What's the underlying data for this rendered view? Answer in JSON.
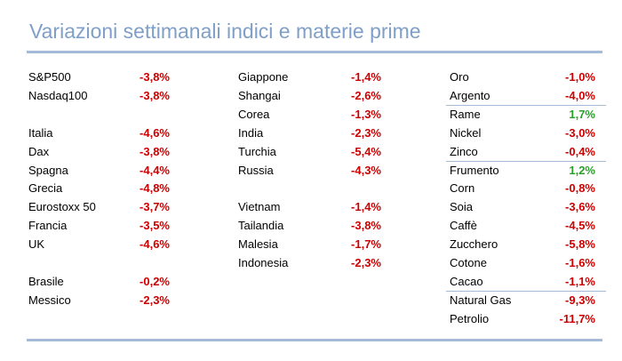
{
  "title": "Variazioni settimanali indici e materie prime",
  "colors": {
    "title": "#7f9fc8",
    "rule": "#a5bad6",
    "negative": "#cc0000",
    "positive": "#2aa02a"
  },
  "col1": [
    {
      "name": "S&P500",
      "value": "-3,8%",
      "sign": "neg"
    },
    {
      "name": "Nasdaq100",
      "value": "-3,8%",
      "sign": "neg"
    },
    {
      "name": "Italia",
      "value": "-4,6%",
      "sign": "neg"
    },
    {
      "name": "Dax",
      "value": "-3,8%",
      "sign": "neg"
    },
    {
      "name": "Spagna",
      "value": "-4,4%",
      "sign": "neg"
    },
    {
      "name": "Grecia",
      "value": "-4,8%",
      "sign": "neg"
    },
    {
      "name": "Eurostoxx 50",
      "value": "-3,7%",
      "sign": "neg"
    },
    {
      "name": "Francia",
      "value": "-3,5%",
      "sign": "neg"
    },
    {
      "name": "UK",
      "value": "-4,6%",
      "sign": "neg"
    },
    {
      "name": "Brasile",
      "value": "-0,2%",
      "sign": "neg"
    },
    {
      "name": "Messico",
      "value": "-2,3%",
      "sign": "neg"
    }
  ],
  "col2": [
    {
      "name": "Giappone",
      "value": "-1,4%",
      "sign": "neg"
    },
    {
      "name": "Shangai",
      "value": "-2,6%",
      "sign": "neg"
    },
    {
      "name": "Corea",
      "value": "-1,3%",
      "sign": "neg"
    },
    {
      "name": "India",
      "value": "-2,3%",
      "sign": "neg"
    },
    {
      "name": "Turchia",
      "value": "-5,4%",
      "sign": "neg"
    },
    {
      "name": "Russia",
      "value": "-4,3%",
      "sign": "neg"
    },
    {
      "name": "Vietnam",
      "value": "-1,4%",
      "sign": "neg"
    },
    {
      "name": "Tailandia",
      "value": "-3,8%",
      "sign": "neg"
    },
    {
      "name": "Malesia",
      "value": "-1,7%",
      "sign": "neg"
    },
    {
      "name": "Indonesia",
      "value": "-2,3%",
      "sign": "neg"
    }
  ],
  "col3": [
    {
      "name": "Oro",
      "value": "-1,0%",
      "sign": "neg"
    },
    {
      "name": "Argento",
      "value": "-4,0%",
      "sign": "neg"
    },
    {
      "name": "Rame",
      "value": "1,7%",
      "sign": "pos"
    },
    {
      "name": "Nickel",
      "value": "-3,0%",
      "sign": "neg"
    },
    {
      "name": "Zinco",
      "value": "-0,4%",
      "sign": "neg"
    },
    {
      "name": "Frumento",
      "value": "1,2%",
      "sign": "pos"
    },
    {
      "name": "Corn",
      "value": "-0,8%",
      "sign": "neg"
    },
    {
      "name": "Soia",
      "value": "-3,6%",
      "sign": "neg"
    },
    {
      "name": "Caffè",
      "value": "-4,5%",
      "sign": "neg"
    },
    {
      "name": "Zucchero",
      "value": "-5,8%",
      "sign": "neg"
    },
    {
      "name": "Cotone",
      "value": "-1,6%",
      "sign": "neg"
    },
    {
      "name": "Cacao",
      "value": "-1,1%",
      "sign": "neg"
    },
    {
      "name": "Natural Gas",
      "value": "-9,3%",
      "sign": "neg"
    },
    {
      "name": "Petrolio",
      "value": "-11,7%",
      "sign": "neg"
    }
  ]
}
